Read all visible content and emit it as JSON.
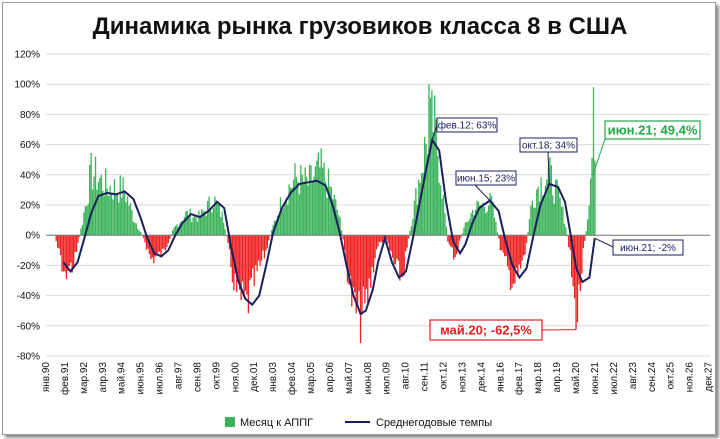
{
  "chart_data": {
    "type": "bar",
    "title": "Динамика рынка грузовиков класса 8 в США",
    "y_ticks": [
      "120%",
      "100%",
      "80%",
      "60%",
      "40%",
      "20%",
      "0%",
      "-20%",
      "-40%",
      "-60%",
      "-80%"
    ],
    "ylim": [
      -80,
      120
    ],
    "x_ticks": [
      "янв.90",
      "фев.91",
      "мар.92",
      "апр.93",
      "май.94",
      "июн.95",
      "июл.96",
      "авг.97",
      "сен.98",
      "окт.99",
      "ноя.00",
      "дек.01",
      "янв.03",
      "фев.04",
      "мар.05",
      "апр.06",
      "май.07",
      "июн.08",
      "июл.09",
      "авг.10",
      "сен.11",
      "окт.12",
      "ноя.13",
      "дек.14",
      "янв.16",
      "фев.17",
      "мар.18",
      "апр.19",
      "май.20",
      "июн.21",
      "июл.22",
      "авг.23",
      "сен.24",
      "окт.25",
      "ноя.26",
      "дек.27"
    ],
    "grid": true,
    "legend_position": "bottom",
    "series": [
      {
        "name": "Месяц к АППГ",
        "kind": "bar",
        "color": "#3cb35a",
        "anchor_points": [
          [
            1990.0,
            0
          ],
          [
            1990.5,
            0
          ],
          [
            1991.0,
            -24
          ],
          [
            1991.6,
            -20
          ],
          [
            1992.1,
            10
          ],
          [
            1992.6,
            42
          ],
          [
            1993.5,
            32
          ],
          [
            1994.5,
            30
          ],
          [
            1995.0,
            12
          ],
          [
            1995.6,
            -2
          ],
          [
            1996.0,
            -16
          ],
          [
            1996.7,
            -12
          ],
          [
            1997.3,
            4
          ],
          [
            1998.0,
            14
          ],
          [
            1998.8,
            12
          ],
          [
            1999.6,
            24
          ],
          [
            2000.2,
            10
          ],
          [
            2000.6,
            -22
          ],
          [
            2001.0,
            -42
          ],
          [
            2001.5,
            -46
          ],
          [
            2002.0,
            -28
          ],
          [
            2002.6,
            -10
          ],
          [
            2003.0,
            6
          ],
          [
            2003.6,
            26
          ],
          [
            2004.3,
            38
          ],
          [
            2005.0,
            34
          ],
          [
            2005.7,
            44
          ],
          [
            2006.3,
            30
          ],
          [
            2006.8,
            12
          ],
          [
            2007.1,
            -12
          ],
          [
            2007.5,
            -42
          ],
          [
            2007.9,
            -56
          ],
          [
            2008.3,
            -48
          ],
          [
            2008.8,
            -16
          ],
          [
            2009.0,
            -6
          ],
          [
            2009.5,
            -4
          ],
          [
            2010.0,
            -22
          ],
          [
            2010.4,
            -28
          ],
          [
            2010.9,
            8
          ],
          [
            2011.4,
            40
          ],
          [
            2011.9,
            70
          ],
          [
            2012.2,
            75
          ],
          [
            2012.6,
            40
          ],
          [
            2013.0,
            -5
          ],
          [
            2013.4,
            -14
          ],
          [
            2013.9,
            4
          ],
          [
            2014.5,
            18
          ],
          [
            2015.0,
            20
          ],
          [
            2015.5,
            22
          ],
          [
            2016.0,
            -8
          ],
          [
            2016.5,
            -26
          ],
          [
            2016.9,
            -32
          ],
          [
            2017.4,
            -14
          ],
          [
            2017.8,
            22
          ],
          [
            2018.2,
            34
          ],
          [
            2018.8,
            40
          ],
          [
            2019.3,
            26
          ],
          [
            2019.7,
            10
          ],
          [
            2020.0,
            -14
          ],
          [
            2020.35,
            -62.5
          ],
          [
            2020.7,
            -18
          ],
          [
            2021.0,
            12
          ],
          [
            2021.2,
            52
          ],
          [
            2021.42,
            49.4
          ],
          [
            2021.45,
            0
          ]
        ]
      },
      {
        "name": "Среднегодовые темпы",
        "kind": "line",
        "color": "#1a1f5e",
        "points": [
          [
            1991.0,
            -18
          ],
          [
            1991.4,
            -24
          ],
          [
            1991.8,
            -18
          ],
          [
            1992.2,
            -2
          ],
          [
            1992.6,
            15
          ],
          [
            1993.0,
            26
          ],
          [
            1993.5,
            28
          ],
          [
            1994.0,
            27
          ],
          [
            1994.5,
            29
          ],
          [
            1995.0,
            24
          ],
          [
            1995.4,
            12
          ],
          [
            1995.8,
            -2
          ],
          [
            1996.2,
            -12
          ],
          [
            1996.6,
            -14
          ],
          [
            1997.0,
            -10
          ],
          [
            1997.4,
            0
          ],
          [
            1997.8,
            8
          ],
          [
            1998.3,
            14
          ],
          [
            1998.8,
            12
          ],
          [
            1999.3,
            16
          ],
          [
            1999.8,
            22
          ],
          [
            2000.2,
            18
          ],
          [
            2000.6,
            -8
          ],
          [
            2001.0,
            -30
          ],
          [
            2001.4,
            -42
          ],
          [
            2001.8,
            -46
          ],
          [
            2002.2,
            -40
          ],
          [
            2002.6,
            -20
          ],
          [
            2003.0,
            2
          ],
          [
            2003.5,
            18
          ],
          [
            2004.0,
            28
          ],
          [
            2004.5,
            34
          ],
          [
            2005.0,
            35
          ],
          [
            2005.5,
            36
          ],
          [
            2006.0,
            33
          ],
          [
            2006.4,
            20
          ],
          [
            2006.8,
            2
          ],
          [
            2007.2,
            -20
          ],
          [
            2007.6,
            -40
          ],
          [
            2008.0,
            -52
          ],
          [
            2008.3,
            -50
          ],
          [
            2008.7,
            -36
          ],
          [
            2009.0,
            -18
          ],
          [
            2009.4,
            -2
          ],
          [
            2009.8,
            -18
          ],
          [
            2010.2,
            -28
          ],
          [
            2010.6,
            -24
          ],
          [
            2011.0,
            -2
          ],
          [
            2011.4,
            22
          ],
          [
            2011.8,
            46
          ],
          [
            2012.1,
            63
          ],
          [
            2012.5,
            56
          ],
          [
            2012.9,
            22
          ],
          [
            2013.3,
            -4
          ],
          [
            2013.7,
            -12
          ],
          [
            2014.0,
            -6
          ],
          [
            2014.4,
            8
          ],
          [
            2014.8,
            18
          ],
          [
            2015.4,
            23
          ],
          [
            2015.9,
            16
          ],
          [
            2016.3,
            -4
          ],
          [
            2016.7,
            -20
          ],
          [
            2017.1,
            -28
          ],
          [
            2017.5,
            -22
          ],
          [
            2017.9,
            0
          ],
          [
            2018.3,
            20
          ],
          [
            2018.8,
            34
          ],
          [
            2019.3,
            32
          ],
          [
            2019.7,
            22
          ],
          [
            2020.0,
            2
          ],
          [
            2020.35,
            -22
          ],
          [
            2020.7,
            -31
          ],
          [
            2021.1,
            -28
          ],
          [
            2021.4,
            -2
          ]
        ]
      }
    ],
    "annotations": [
      {
        "label": "фев.12; 63%",
        "color": "#1a1f5e"
      },
      {
        "label": "июн.15; 23%",
        "color": "#1a1f5e"
      },
      {
        "label": "окт.18; 34%",
        "color": "#1a1f5e"
      },
      {
        "label": "июн.21; 49,4%",
        "color": "#22a64a"
      },
      {
        "label": "июн.21; -2%",
        "color": "#1a1f5e"
      },
      {
        "label": "май.20; -62,5%",
        "color": "#e02020"
      }
    ]
  }
}
